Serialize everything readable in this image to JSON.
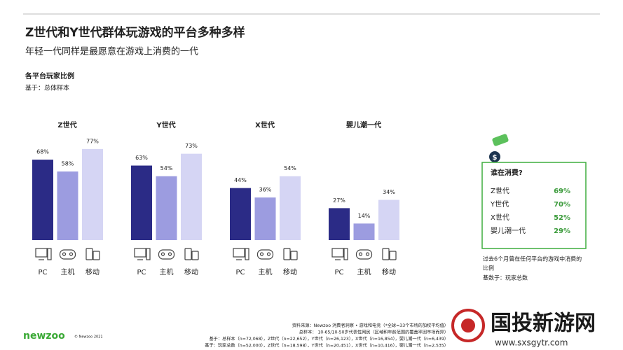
{
  "header": {
    "title": "Z世代和Y世代群体玩游戏的平台多种多样",
    "subtitle": "年轻一代同样是最愿意在游戏上消费的一代",
    "chart_heading": "各平台玩家比例",
    "chart_base": "基于：总体样本"
  },
  "chart_data": [
    {
      "type": "bar",
      "title": "Z世代",
      "categories": [
        "PC",
        "主机",
        "移动"
      ],
      "values": [
        68,
        58,
        77
      ],
      "value_labels": [
        "68%",
        "58%",
        "77%"
      ],
      "colors": [
        "#2b2b86",
        "#9c9ce0",
        "#d5d5f4"
      ]
    },
    {
      "type": "bar",
      "title": "Y世代",
      "categories": [
        "PC",
        "主机",
        "移动"
      ],
      "values": [
        63,
        54,
        73
      ],
      "value_labels": [
        "63%",
        "54%",
        "73%"
      ],
      "colors": [
        "#2b2b86",
        "#9c9ce0",
        "#d5d5f4"
      ]
    },
    {
      "type": "bar",
      "title": "X世代",
      "categories": [
        "PC",
        "主机",
        "移动"
      ],
      "values": [
        44,
        36,
        54
      ],
      "value_labels": [
        "44%",
        "36%",
        "54%"
      ],
      "colors": [
        "#2b2b86",
        "#9c9ce0",
        "#d5d5f4"
      ]
    },
    {
      "type": "bar",
      "title": "婴儿潮一代",
      "categories": [
        "PC",
        "主机",
        "移动"
      ],
      "values": [
        27,
        14,
        34
      ],
      "value_labels": [
        "27%",
        "14%",
        "34%"
      ],
      "colors": [
        "#2b2b86",
        "#9c9ce0",
        "#d5d5f4"
      ]
    }
  ],
  "panel": {
    "title": "谁在消费?",
    "rows": [
      [
        "Z世代",
        "69%"
      ],
      [
        "Y世代",
        "70%"
      ],
      [
        "X世代",
        "52%"
      ],
      [
        "婴儿潮一代",
        "29%"
      ]
    ],
    "note": [
      "过去6个月曾在任何平台的游戏中消费的",
      "比例"
    ],
    "base": "基数于：玩家总数"
  },
  "footer": {
    "lines": [
      "资料来源：Newzoo 消费者洞察 • 游戏和电竞（*全球=33个市场的加权平均值）",
      "总样本： 10-65/10-50岁代表性网民（区域和年龄范围的覆盖率因市场而异）",
      "基于：总样本（n=72,068），Z世代（n=22,652），Y世代（n=26,123），X世代（n=16,854），婴儿潮一代（n=6,439）",
      "基于：玩家总数（n=52,000），Z世代（n=18,598），Y世代（n=20,451），X世代（n=10,416），婴儿潮一代（n=2,535）"
    ],
    "logo": "newzoo",
    "copyright": "© Newzoo 2021"
  },
  "watermark": {
    "name": "国投新游网",
    "url": "www.sxsgytr.com"
  }
}
